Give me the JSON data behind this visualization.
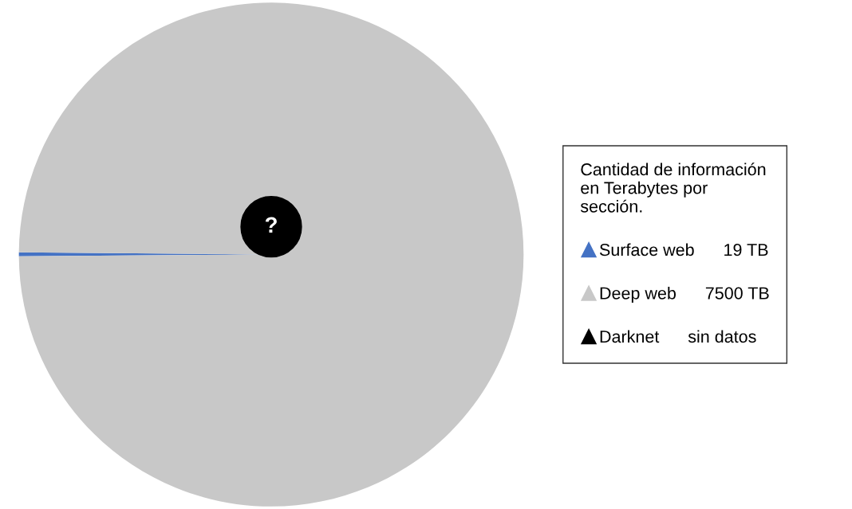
{
  "chart_data": {
    "type": "pie",
    "legend_title": "Cantidad de información\nen Terabytes por\nsección.",
    "categories": [
      "Surface web",
      "Deep web",
      "Darknet"
    ],
    "values": [
      19,
      7500,
      null
    ],
    "value_labels": [
      "19 TB",
      "7500 TB",
      "sin datos"
    ],
    "colors": [
      "#4472c4",
      "#c8c8c8",
      "#000000"
    ],
    "annotations": [
      "?"
    ],
    "legend": "right",
    "marker": "triangle"
  }
}
